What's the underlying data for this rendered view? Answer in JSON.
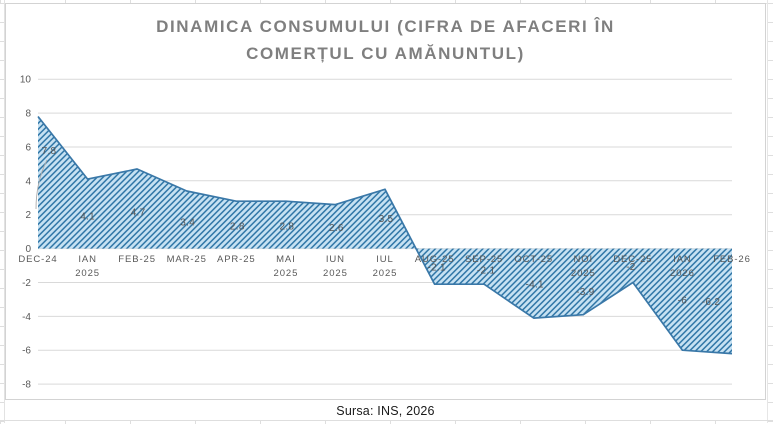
{
  "chart_data": {
    "type": "area",
    "title": "DINAMICA CONSUMULUI (CIFRA DE AFACERI ÎN COMERȚUL CU AMĂNUNTUL)",
    "title_lines": [
      "DINAMICA CONSUMULUI (CIFRA DE AFACERI ÎN",
      "COMERȚUL CU AMĂNUNTUL)"
    ],
    "categories": [
      "DEC-24",
      "IAN 2025",
      "FEB-25",
      "MAR-25",
      "APR-25",
      "MAI 2025",
      "IUN 2025",
      "IUL 2025",
      "AUG-25",
      "SEP-25",
      "OCT-25",
      "NOI 2025",
      "DEC-25",
      "IAN 2026",
      "FEB-26"
    ],
    "category_label_lines": [
      [
        "DEC-24"
      ],
      [
        "IAN",
        "2025"
      ],
      [
        "FEB-25"
      ],
      [
        "MAR-25"
      ],
      [
        "APR-25"
      ],
      [
        "MAI",
        "2025"
      ],
      [
        "IUN",
        "2025"
      ],
      [
        "IUL",
        "2025"
      ],
      [
        "AUG-25"
      ],
      [
        "SEP-25"
      ],
      [
        "OCT-25"
      ],
      [
        "NOI",
        "2025"
      ],
      [
        "DEC-25"
      ],
      [
        "IAN",
        "2026"
      ],
      [
        "FEB-26"
      ]
    ],
    "values": [
      7.8,
      4.1,
      4.7,
      3.4,
      2.8,
      2.8,
      2.6,
      3.5,
      -2.1,
      -2.1,
      -4.1,
      -3.9,
      -2,
      -6,
      -6.2
    ],
    "data_labels": [
      "7.8",
      "4.1",
      "4.7",
      "3.4",
      "2.8",
      "2.8",
      "2.6",
      "3.5",
      "-2.1",
      "-2.1",
      "-4.1",
      "-3.9",
      "-2",
      "-6",
      "-6.2"
    ],
    "yticks": [
      10,
      8,
      6,
      4,
      2,
      0,
      -2,
      -4,
      -6,
      -8
    ],
    "ylim": [
      -8,
      10
    ],
    "ytick_step": 2,
    "grid": "horizontal",
    "legend": "none",
    "fill_style": "diagonal-hatch",
    "colors": {
      "fill_bg": "#c7e2f3",
      "hatch_stripe": "#2e75a6",
      "series_line": "#3a78a8",
      "gridline": "#d9d9d9",
      "axis_text": "#595959",
      "data_label_text": "#555555",
      "title_text": "#7f7f7f"
    }
  },
  "source_note": "Sursa: INS, 2026"
}
